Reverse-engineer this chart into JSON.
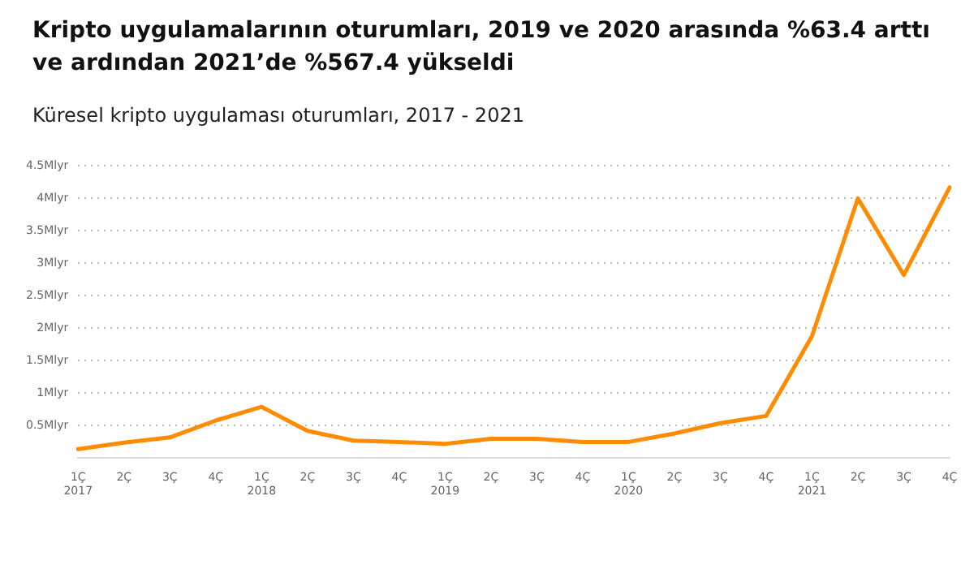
{
  "chart_data": {
    "type": "line",
    "title": "Kripto uygulamalarının oturumları, 2019 ve 2020 arasında %63.4 arttı ve ardından 2021’de %567.4 yükseldi",
    "subtitle": "Küresel kripto uygulaması oturumları, 2017 - 2021",
    "categories": [
      "1Ç\n2017",
      "2Ç",
      "3Ç",
      "4Ç",
      "1Ç\n2018",
      "2Ç",
      "3Ç",
      "4Ç",
      "1Ç\n2019",
      "2Ç",
      "3Ç",
      "4Ç",
      "1Ç\n2020",
      "2Ç",
      "3Ç",
      "4Ç",
      "1Ç\n2021",
      "2Ç",
      "3Ç",
      "4Ç"
    ],
    "series": [
      {
        "color": "#ff8c00",
        "values": [
          0.14,
          0.24,
          0.32,
          0.58,
          0.79,
          0.42,
          0.27,
          0.25,
          0.22,
          0.3,
          0.3,
          0.25,
          0.25,
          0.38,
          0.54,
          0.65,
          1.88,
          4.0,
          2.82,
          4.17
        ]
      }
    ],
    "ylim": [
      0,
      4.5
    ],
    "yticks": [
      {
        "value": 0.5,
        "label": "0.5Mlyr"
      },
      {
        "value": 1,
        "label": "1Mlyr"
      },
      {
        "value": 1.5,
        "label": "1.5Mlyr"
      },
      {
        "value": 2,
        "label": "2Mlyr"
      },
      {
        "value": 2.5,
        "label": "2.5Mlyr"
      },
      {
        "value": 3,
        "label": "3Mlyr"
      },
      {
        "value": 3.5,
        "label": "3.5Mlyr"
      },
      {
        "value": 4,
        "label": "4Mlyr"
      },
      {
        "value": 4.5,
        "label": "4.5Mlyr"
      }
    ],
    "grid": "y",
    "legend": false,
    "marker": "none",
    "line_style": "solid"
  }
}
